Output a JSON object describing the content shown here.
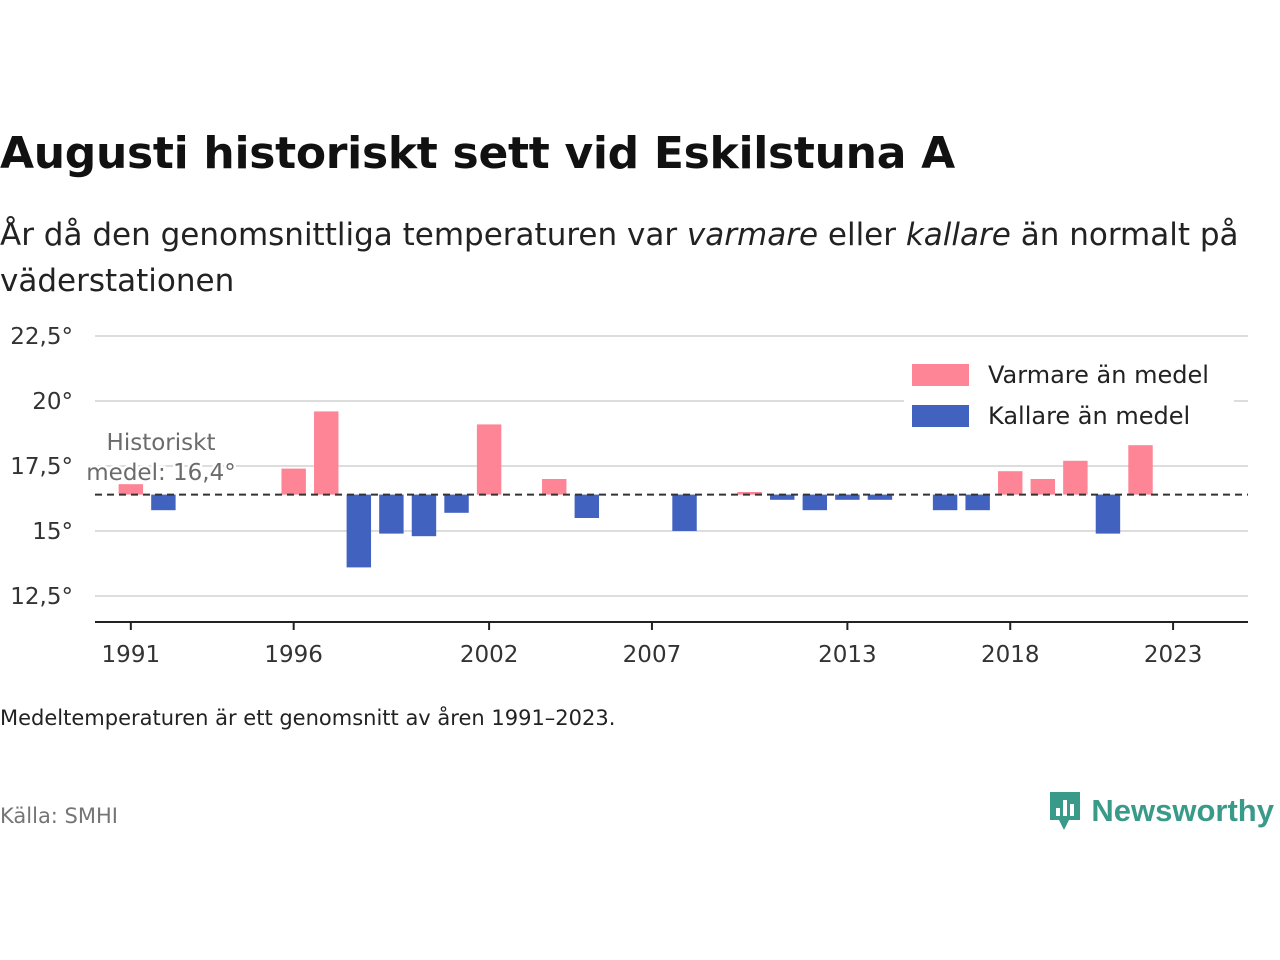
{
  "title": "Augusti historiskt sett vid Eskilstuna A",
  "subtitle": {
    "part1": "År då den genomsnittliga temperaturen var ",
    "em1": "varmare",
    "part2": " eller ",
    "em2": "kallare",
    "part3": " än normalt på väderstationen"
  },
  "note": "Medeltemperaturen är ett genomsnitt av åren 1991–2023.",
  "source": "Källa: SMHI",
  "brand": "Newsworthy",
  "chart_data": {
    "type": "bar",
    "baseline": 16.4,
    "baseline_label_line1": "Historiskt",
    "baseline_label_line2": "medel: 16,4°",
    "ylim": [
      11.5,
      23.5
    ],
    "yticks": [
      12.5,
      15,
      17.5,
      20,
      22.5
    ],
    "ytick_labels": [
      "12,5°",
      "15°",
      "17,5°",
      "20°",
      "22,5°"
    ],
    "xlim": [
      1989.9,
      2025.3
    ],
    "xticks": [
      1991,
      1996,
      2002,
      2007,
      2013,
      2018,
      2023
    ],
    "colors": {
      "warm": "#fd8595",
      "cold": "#4262c0"
    },
    "legend": {
      "placement": "top-right",
      "warm_label": "Varmare än medel",
      "cold_label": "Kallare än medel"
    },
    "grid": true,
    "x": [
      1991,
      1992,
      1993,
      1994,
      1995,
      1996,
      1997,
      1998,
      1999,
      2000,
      2001,
      2002,
      2003,
      2004,
      2005,
      2006,
      2007,
      2008,
      2009,
      2010,
      2011,
      2012,
      2013,
      2014,
      2015,
      2016,
      2017,
      2018,
      2019,
      2020,
      2021,
      2022,
      2023
    ],
    "values": [
      16.8,
      15.8,
      null,
      null,
      null,
      17.4,
      19.6,
      13.6,
      14.9,
      14.8,
      15.7,
      19.1,
      null,
      17.0,
      15.5,
      null,
      null,
      15.0,
      null,
      16.5,
      16.2,
      15.8,
      16.2,
      16.2,
      null,
      15.8,
      15.8,
      17.3,
      17.0,
      17.7,
      14.9,
      18.3,
      null
    ]
  }
}
